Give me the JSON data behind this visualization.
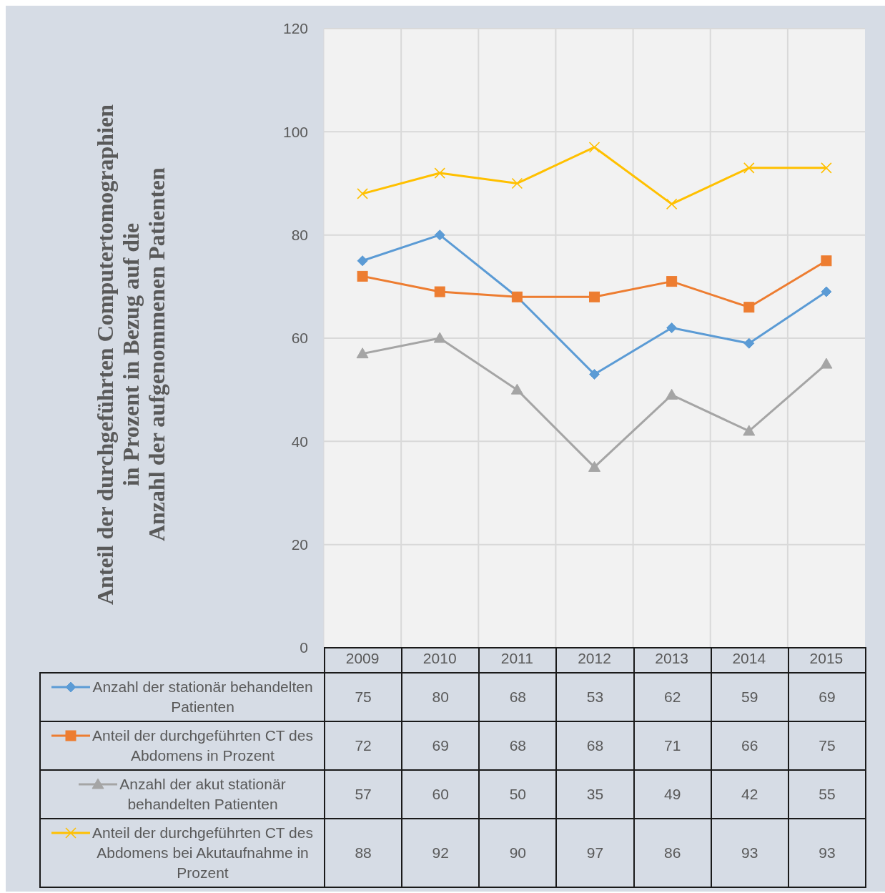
{
  "chart_data": {
    "type": "line",
    "ylabel": "Anteil der durchgeführten Computertomographien\nin Prozent in Bezug auf die\nAnzahl der aufgenommenen Patienten",
    "categories": [
      "2009",
      "2010",
      "2011",
      "2012",
      "2013",
      "2014",
      "2015"
    ],
    "series": [
      {
        "name": "Anzahl der stationär behandelten Patienten",
        "color": "#5b9bd5",
        "marker": "diamond",
        "values": [
          75,
          80,
          68,
          53,
          62,
          59,
          69
        ]
      },
      {
        "name": "Anteil der durchgeführten CT des Abdomens in Prozent",
        "color": "#ed7d31",
        "marker": "square",
        "values": [
          72,
          69,
          68,
          68,
          71,
          66,
          75
        ]
      },
      {
        "name": "Anzahl der akut stationär behandelten Patienten",
        "color": "#a5a5a5",
        "marker": "triangle",
        "values": [
          57,
          60,
          50,
          35,
          49,
          42,
          55
        ]
      },
      {
        "name": "Anteil der durchgeführten CT des Abdomens bei Akutaufnahme in Prozent",
        "color": "#ffc000",
        "marker": "cross",
        "values": [
          88,
          92,
          90,
          97,
          86,
          93,
          93
        ]
      }
    ],
    "ylim": [
      0,
      120
    ],
    "yticks": [
      0,
      20,
      40,
      60,
      80,
      100,
      120
    ],
    "grid": true,
    "legend": "bottom",
    "data_labels": true
  }
}
